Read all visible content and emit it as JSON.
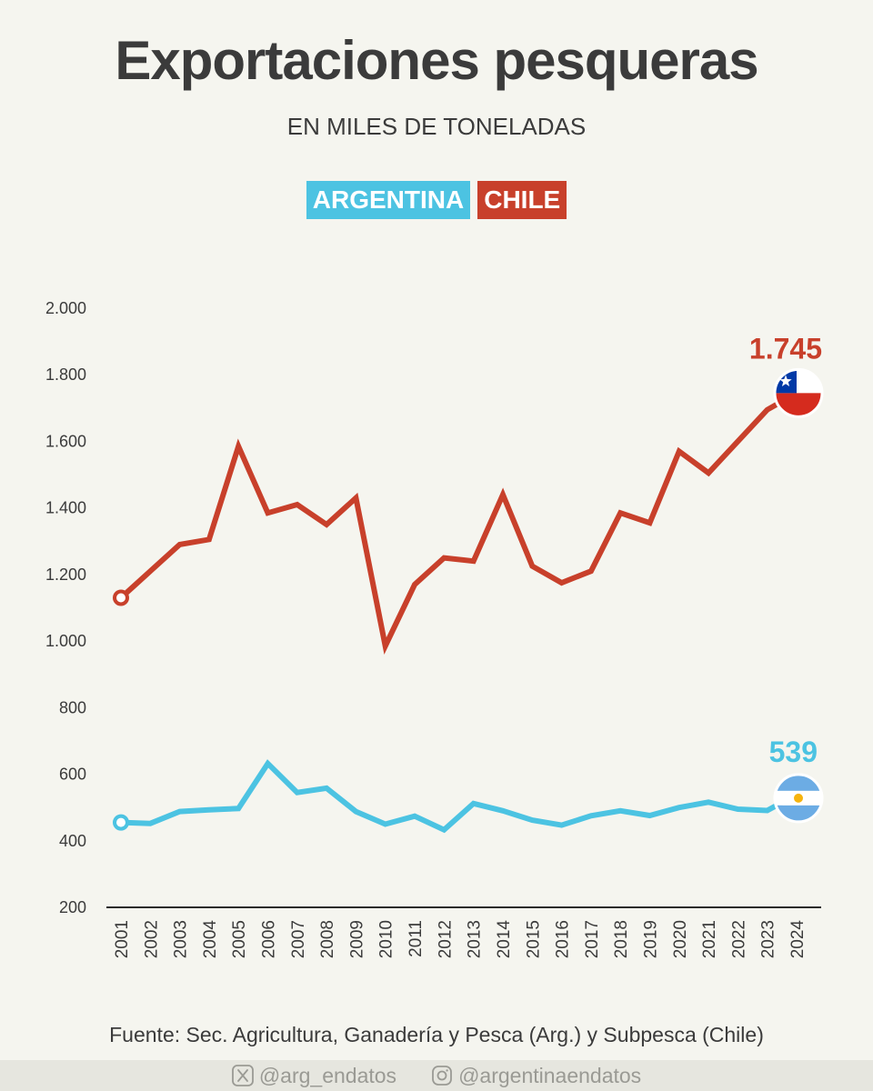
{
  "header": {
    "title": "Exportaciones pesqueras",
    "subtitle": "EN MILES DE TONELADAS"
  },
  "legend": [
    {
      "name": "ARGENTINA",
      "color": "#4cc3e2"
    },
    {
      "name": "CHILE",
      "color": "#c8402b"
    }
  ],
  "chart_data": {
    "type": "line",
    "title": "Exportaciones pesqueras",
    "subtitle": "EN MILES DE TONELADAS",
    "x": [
      "2001",
      "2002",
      "2003",
      "2004",
      "2005",
      "2006",
      "2007",
      "2008",
      "2009",
      "2010",
      "2011",
      "2012",
      "2013",
      "2014",
      "2015",
      "2016",
      "2017",
      "2018",
      "2019",
      "2020",
      "2021",
      "2022",
      "2023",
      "2024"
    ],
    "ylim": [
      200,
      2000
    ],
    "yticks": [
      200,
      400,
      600,
      800,
      1000,
      1200,
      1400,
      1600,
      1800,
      2000
    ],
    "ytick_labels": [
      "200",
      "400",
      "600",
      "800",
      "1.000",
      "1.200",
      "1.400",
      "1.600",
      "1.800",
      "2.000"
    ],
    "series": [
      {
        "name": "CHILE",
        "color": "#c8402b",
        "values": [
          1130,
          1210,
          1290,
          1305,
          1585,
          1385,
          1410,
          1350,
          1430,
          985,
          1170,
          1250,
          1240,
          1440,
          1225,
          1175,
          1210,
          1385,
          1355,
          1570,
          1505,
          1600,
          1695,
          1745
        ],
        "end_label": "1.745",
        "flag": "chile-flag"
      },
      {
        "name": "ARGENTINA",
        "color": "#4cc3e2",
        "values": [
          455,
          452,
          488,
          493,
          497,
          632,
          545,
          558,
          488,
          450,
          474,
          433,
          512,
          490,
          462,
          447,
          475,
          490,
          476,
          500,
          516,
          495,
          491,
          539
        ],
        "end_label": "539",
        "flag": "argentina-flag"
      }
    ]
  },
  "source": "Fuente: Sec. Agricultura, Ganadería y Pesca (Arg.) y Subpesca (Chile)",
  "footer": {
    "twitter": "@arg_endatos",
    "instagram": "@argentinaendatos"
  }
}
